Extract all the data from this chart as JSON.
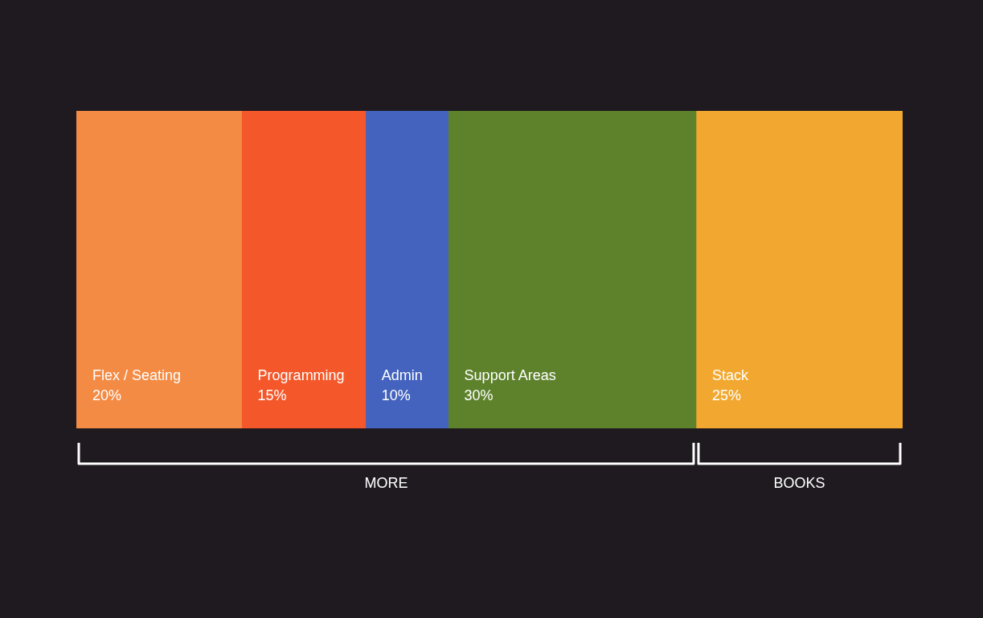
{
  "chart_data": {
    "type": "bar",
    "orientation": "horizontal",
    "stacked": true,
    "categories": [
      null
    ],
    "series": [
      {
        "name": "Flex / Seating",
        "color": "#f38b45",
        "values": [
          20
        ],
        "value_labels": [
          "20%"
        ]
      },
      {
        "name": "Programming",
        "color": "#f4582a",
        "values": [
          15
        ],
        "value_labels": [
          "15%"
        ]
      },
      {
        "name": "Admin",
        "color": "#4463be",
        "values": [
          10
        ],
        "value_labels": [
          "10%"
        ]
      },
      {
        "name": "Support Areas",
        "color": "#5e822c",
        "values": [
          30
        ],
        "value_labels": [
          "30%"
        ]
      },
      {
        "name": "Stack",
        "color": "#f2a830",
        "values": [
          25
        ],
        "value_labels": [
          "25%"
        ]
      }
    ],
    "xlim": [
      0,
      100
    ],
    "annotations": [
      "MORE",
      "BOOKS"
    ]
  }
}
